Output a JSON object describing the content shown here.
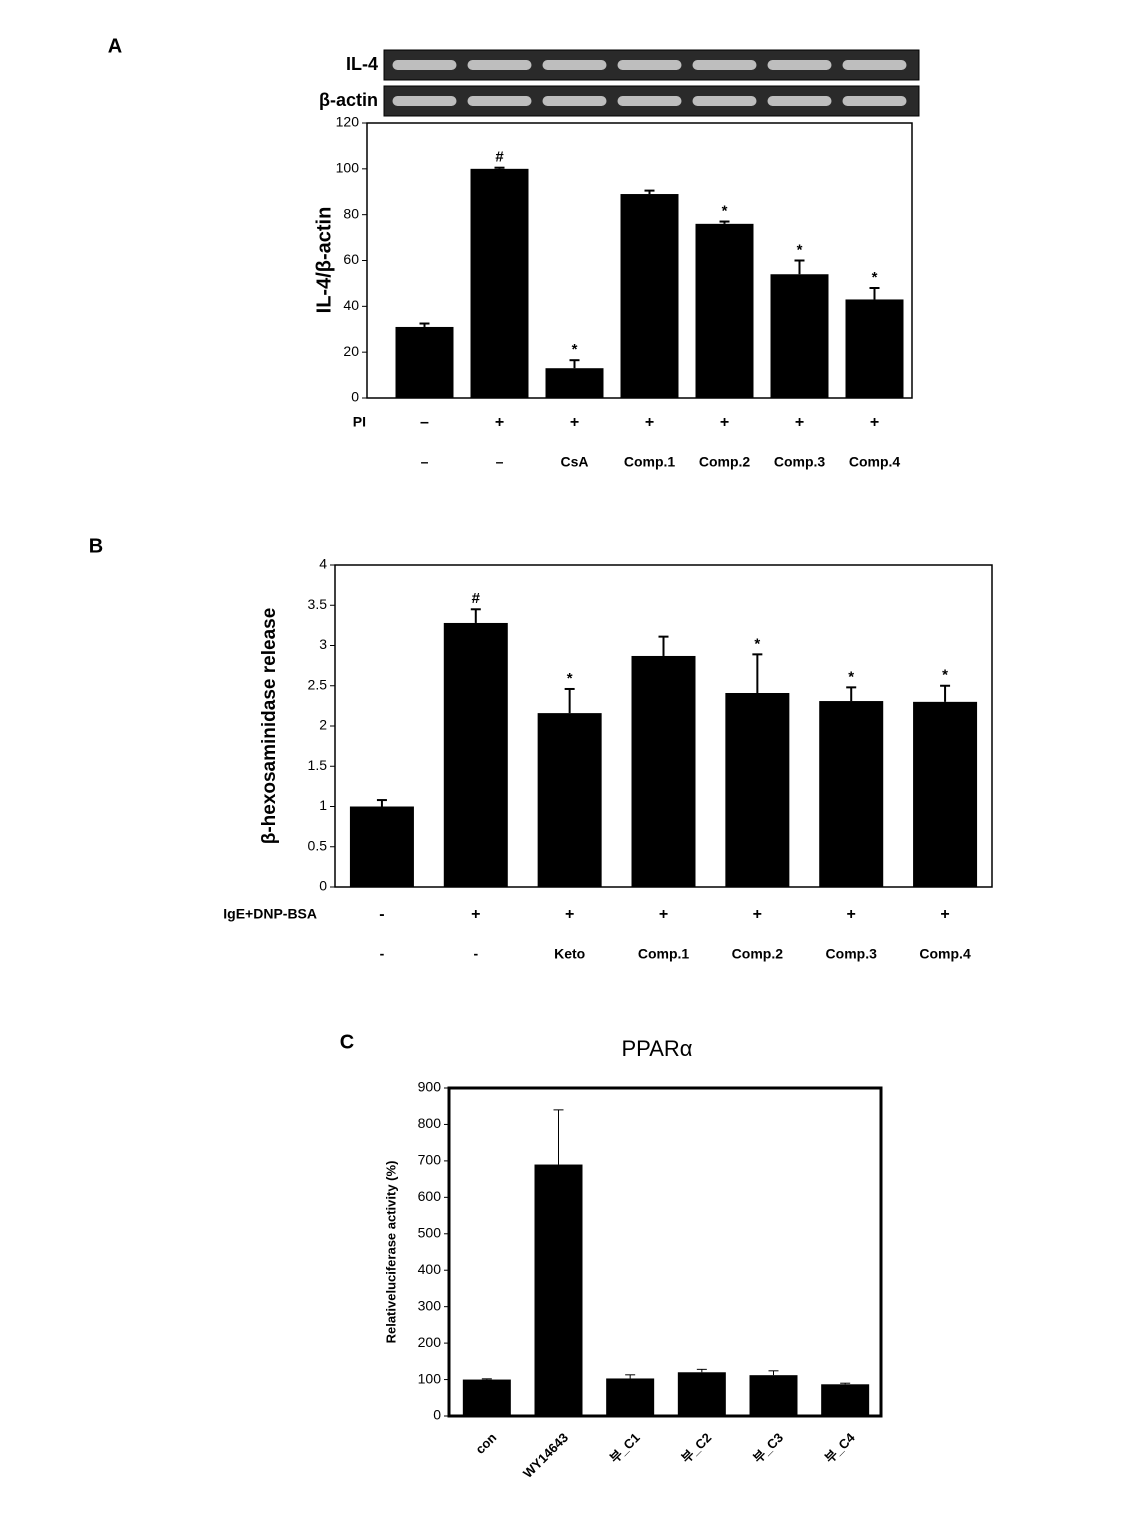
{
  "chart_data": [
    {
      "type": "bar",
      "panel": "A",
      "ylabel": "IL-4/β-actin",
      "gel_labels": [
        "IL-4",
        "β-actin"
      ],
      "categories": [
        "–",
        "–",
        "CsA",
        "Comp.1",
        "Comp.2",
        "Comp.3",
        "Comp.4"
      ],
      "rows": [
        {
          "label": "PI",
          "values": [
            "–",
            "+",
            "+",
            "+",
            "+",
            "+",
            "+"
          ]
        }
      ],
      "values": [
        31,
        100,
        13,
        89,
        76,
        54,
        43
      ],
      "errors": [
        1.5,
        0.5,
        3.5,
        1.5,
        1,
        6,
        5
      ],
      "annotations": [
        null,
        "#",
        "*",
        null,
        "*",
        "*",
        "*"
      ],
      "color": "#000000",
      "ylim": [
        0,
        120
      ],
      "yticks": [
        0,
        20,
        40,
        60,
        80,
        100,
        120
      ]
    },
    {
      "type": "bar",
      "panel": "B",
      "ylabel": "β-hexosaminidase release",
      "categories": [
        "-",
        "-",
        "Keto",
        "Comp.1",
        "Comp.2",
        "Comp.3",
        "Comp.4"
      ],
      "rows": [
        {
          "label": "IgE+DNP-BSA",
          "values": [
            "-",
            "+",
            "+",
            "+",
            "+",
            "+",
            "+"
          ]
        }
      ],
      "values": [
        1.0,
        3.28,
        2.16,
        2.87,
        2.41,
        2.31,
        2.3
      ],
      "errors": [
        0.08,
        0.17,
        0.3,
        0.24,
        0.48,
        0.17,
        0.2
      ],
      "annotations": [
        null,
        "#",
        "*",
        null,
        "*",
        "*",
        "*"
      ],
      "color": "#000000",
      "ylim": [
        0,
        4
      ],
      "yticks": [
        0,
        0.5,
        1,
        1.5,
        2,
        2.5,
        3,
        3.5,
        4
      ]
    },
    {
      "type": "bar",
      "panel": "C",
      "title": "PPARα",
      "ylabel": "Relativeluciferase activity (%)",
      "categories": [
        "con",
        "WY14643",
        "부_C1",
        "부_C2",
        "부_C3",
        "부_C4"
      ],
      "values": [
        100,
        690,
        103,
        120,
        112,
        87
      ],
      "errors": [
        2,
        150,
        10,
        8,
        12,
        3
      ],
      "color": "#000000",
      "ylim": [
        0,
        900
      ],
      "yticks": [
        0,
        100,
        200,
        300,
        400,
        500,
        600,
        700,
        800,
        900
      ]
    }
  ]
}
